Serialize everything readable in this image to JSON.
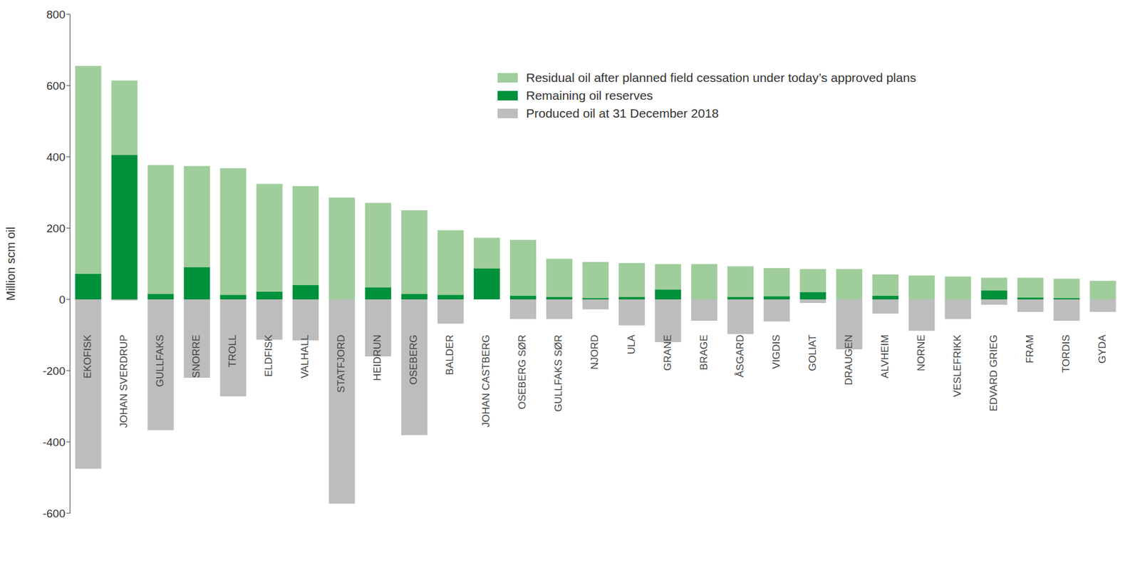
{
  "chart_data": {
    "type": "bar",
    "y_label": "Million scm oil",
    "categories": [
      "EKOFISK",
      "JOHAN SVERDRUP",
      "GULLFAKS",
      "SNORRE",
      "TROLL",
      "ELDFISK",
      "VALHALL",
      "STATFJORD",
      "HEIDRUN",
      "OSEBERG",
      "BALDER",
      "JOHAN CASTBERG",
      "OSEBERG SØR",
      "GULLFAKS SØR",
      "NJORD",
      "ULA",
      "GRANE",
      "BRAGE",
      "ÅSGARD",
      "VIGDIS",
      "GOLIAT",
      "DRAUGEN",
      "ALVHEIM",
      "NORNE",
      "VESLEFRIKK",
      "EDVARD GRIEG",
      "FRAM",
      "TORDIS",
      "GYDA"
    ],
    "series": [
      {
        "name": "Remaining oil reserves",
        "color": "#00913a",
        "values": [
          72,
          406,
          16,
          90,
          13,
          22,
          40,
          0,
          34,
          16,
          13,
          87,
          10,
          7,
          4,
          7,
          28,
          0,
          7,
          9,
          21,
          0,
          10,
          0,
          0,
          25,
          6,
          4,
          0
        ]
      },
      {
        "name": "Residual oil after planned field cessation under today’s approved plans",
        "color": "#9fcd9b",
        "values": [
          583,
          208,
          361,
          284,
          355,
          302,
          278,
          286,
          237,
          234,
          181,
          86,
          157,
          107,
          101,
          95,
          71,
          99,
          86,
          79,
          64,
          85,
          60,
          67,
          64,
          36,
          55,
          54,
          52
        ]
      },
      {
        "name": "Produced oil at 31 December 2018",
        "color": "#bdbdbd",
        "values": [
          -475,
          -3,
          -367,
          -220,
          -272,
          -113,
          -115,
          -573,
          -160,
          -381,
          -68,
          0,
          -55,
          -55,
          -28,
          -73,
          -120,
          -60,
          -97,
          -62,
          -10,
          -140,
          -40,
          -88,
          -55,
          -15,
          -35,
          -60,
          -35
        ]
      }
    ],
    "legend_order": [
      "Residual oil after planned field cessation under today’s approved plans",
      "Remaining oil reserves",
      "Produced oil at 31 December 2018"
    ],
    "ylim": [
      -600,
      800
    ],
    "yticks": [
      -600,
      -400,
      -200,
      0,
      200,
      400,
      600,
      800
    ],
    "stacked": true,
    "legend": "top",
    "grid": false
  }
}
